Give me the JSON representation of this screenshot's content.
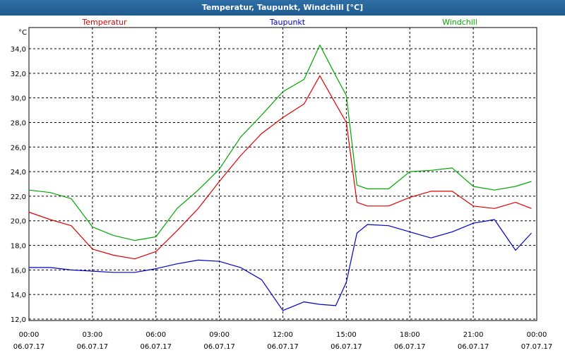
{
  "window": {
    "title": "Temperatur, Taupunkt, Windchill [°C]"
  },
  "chart_data": {
    "type": "line",
    "title": "Temperatur, Taupunkt, Windchill [°C]",
    "unit": "°C",
    "xlabel": "",
    "ylabel": "",
    "x": [
      "06.07.17 00:00",
      "06.07.17 01:00",
      "06.07.17 02:00",
      "06.07.17 03:00",
      "06.07.17 04:00",
      "06.07.17 05:00",
      "06.07.17 06:00",
      "06.07.17 07:00",
      "06.07.17 08:00",
      "06.07.17 09:00",
      "06.07.17 10:00",
      "06.07.17 11:00",
      "06.07.17 12:00",
      "06.07.17 13:00",
      "06.07.17 13:45",
      "06.07.17 14:30",
      "06.07.17 15:00",
      "06.07.17 15:30",
      "06.07.17 16:00",
      "06.07.17 17:00",
      "06.07.17 18:00",
      "06.07.17 19:00",
      "06.07.17 20:00",
      "06.07.17 21:00",
      "06.07.17 22:00",
      "06.07.17 23:00",
      "06.07.17 23:45"
    ],
    "series": [
      {
        "name": "Temperatur",
        "color": "#e00000",
        "values": [
          20.7,
          20.1,
          19.6,
          17.7,
          17.2,
          16.9,
          17.5,
          19.2,
          21.0,
          23.2,
          25.3,
          27.1,
          28.4,
          29.5,
          31.8,
          29.5,
          28.0,
          21.5,
          21.2,
          21.2,
          21.9,
          22.4,
          22.4,
          21.2,
          21.0,
          21.5,
          21.0
        ]
      },
      {
        "name": "Taupunkt",
        "color": "#0000cc",
        "values": [
          16.2,
          16.2,
          16.0,
          15.9,
          15.8,
          15.8,
          16.1,
          16.5,
          16.8,
          16.7,
          16.2,
          15.2,
          12.7,
          13.4,
          13.2,
          13.1,
          15.0,
          19.0,
          19.7,
          19.6,
          19.1,
          18.6,
          19.1,
          19.8,
          20.1,
          17.6,
          19.0
        ]
      },
      {
        "name": "Windchill",
        "color": "#00a800",
        "values": [
          22.5,
          22.3,
          21.8,
          19.5,
          18.8,
          18.4,
          18.7,
          21.0,
          22.5,
          24.2,
          26.8,
          28.6,
          30.5,
          31.5,
          34.3,
          31.8,
          30.2,
          22.9,
          22.6,
          22.6,
          24.0,
          24.1,
          24.3,
          22.8,
          22.5,
          22.8,
          23.2
        ]
      }
    ],
    "ylim": [
      12,
      34
    ],
    "y_ticks": [
      "12,0",
      "14,0",
      "16,0",
      "18,0",
      "20,0",
      "22,0",
      "24,0",
      "26,0",
      "28,0",
      "30,0",
      "32,0",
      "34,0"
    ],
    "x_ticks": [
      {
        "time": "00:00",
        "date": "06.07.17"
      },
      {
        "time": "03:00",
        "date": "06.07.17"
      },
      {
        "time": "06:00",
        "date": "06.07.17"
      },
      {
        "time": "09:00",
        "date": "06.07.17"
      },
      {
        "time": "12:00",
        "date": "06.07.17"
      },
      {
        "time": "15:00",
        "date": "06.07.17"
      },
      {
        "time": "18:00",
        "date": "06.07.17"
      },
      {
        "time": "21:00",
        "date": "06.07.17"
      },
      {
        "time": "00:00",
        "date": "07.07.17"
      }
    ],
    "grid": true,
    "legend_position": "top"
  }
}
